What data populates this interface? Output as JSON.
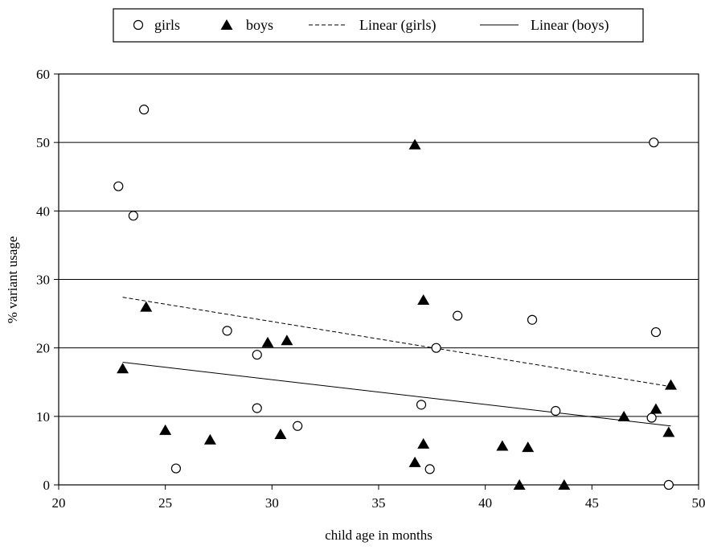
{
  "chart_data": {
    "type": "scatter",
    "title": "",
    "xlabel": "child age in months",
    "ylabel": "% variant usage",
    "xlim": [
      20,
      50
    ],
    "ylim": [
      0,
      60
    ],
    "xticks": [
      "20",
      "25",
      "30",
      "35",
      "40",
      "45",
      "50"
    ],
    "yticks": [
      "0",
      "10",
      "20",
      "30",
      "40",
      "50",
      "60"
    ],
    "grid": "horizontal",
    "legend_position": "top",
    "legend": [
      "girls",
      "boys",
      "Linear (girls)",
      "Linear (boys)"
    ],
    "series": [
      {
        "name": "girls",
        "marker": "open-circle",
        "points": [
          {
            "x": 22.8,
            "y": 43.6
          },
          {
            "x": 23.5,
            "y": 39.3
          },
          {
            "x": 24.0,
            "y": 54.8
          },
          {
            "x": 25.5,
            "y": 2.4
          },
          {
            "x": 27.9,
            "y": 22.5
          },
          {
            "x": 29.3,
            "y": 19.0
          },
          {
            "x": 29.3,
            "y": 11.2
          },
          {
            "x": 31.2,
            "y": 8.6
          },
          {
            "x": 37.0,
            "y": 11.7
          },
          {
            "x": 37.4,
            "y": 2.3
          },
          {
            "x": 37.7,
            "y": 20.0
          },
          {
            "x": 38.7,
            "y": 24.7
          },
          {
            "x": 42.2,
            "y": 24.1
          },
          {
            "x": 43.3,
            "y": 10.8
          },
          {
            "x": 47.8,
            "y": 9.8
          },
          {
            "x": 47.9,
            "y": 50.0
          },
          {
            "x": 48.0,
            "y": 22.3
          },
          {
            "x": 48.6,
            "y": 0.0
          }
        ]
      },
      {
        "name": "boys",
        "marker": "filled-triangle",
        "points": [
          {
            "x": 23.0,
            "y": 17.0
          },
          {
            "x": 24.1,
            "y": 26.0
          },
          {
            "x": 25.0,
            "y": 8.0
          },
          {
            "x": 27.1,
            "y": 6.6
          },
          {
            "x": 29.8,
            "y": 20.8
          },
          {
            "x": 30.4,
            "y": 7.4
          },
          {
            "x": 30.7,
            "y": 21.1
          },
          {
            "x": 36.7,
            "y": 49.7
          },
          {
            "x": 36.7,
            "y": 3.3
          },
          {
            "x": 37.1,
            "y": 27.0
          },
          {
            "x": 37.1,
            "y": 6.0
          },
          {
            "x": 40.8,
            "y": 5.7
          },
          {
            "x": 41.6,
            "y": 0.0
          },
          {
            "x": 42.0,
            "y": 5.5
          },
          {
            "x": 43.7,
            "y": 0.0
          },
          {
            "x": 46.5,
            "y": 10.0
          },
          {
            "x": 48.0,
            "y": 11.1
          },
          {
            "x": 48.6,
            "y": 7.7
          },
          {
            "x": 48.7,
            "y": 14.6
          }
        ]
      }
    ],
    "trendlines": [
      {
        "name": "Linear (girls)",
        "style": "dashed",
        "x": [
          23.0,
          48.6
        ],
        "y": [
          27.4,
          14.4
        ]
      },
      {
        "name": "Linear (boys)",
        "style": "solid",
        "x": [
          23.0,
          48.7
        ],
        "y": [
          17.9,
          8.6
        ]
      }
    ]
  }
}
